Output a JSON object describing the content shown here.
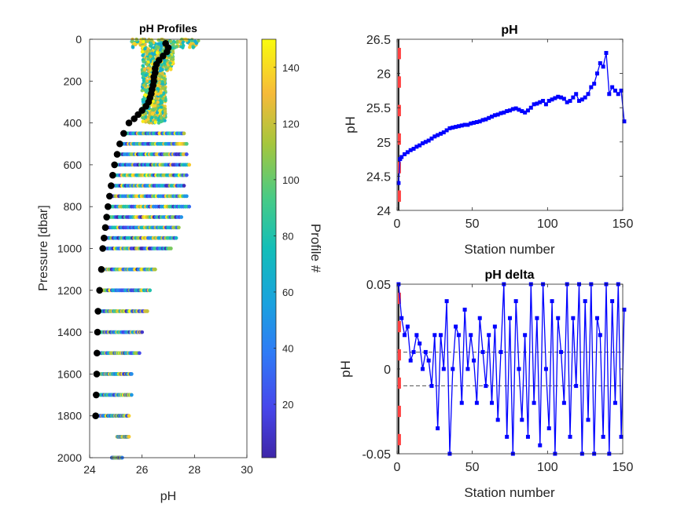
{
  "colors": {
    "axis": "#262626",
    "series": "#0000FF",
    "marker_red": "#FF4040",
    "reference_line": "#222222",
    "profile_line": "#000000"
  },
  "chart_data": [
    {
      "type": "scatter",
      "title": "pH Profiles",
      "xlabel": "pH",
      "ylabel": "Pressure [dbar]",
      "xlim": [
        24,
        30
      ],
      "ylim": [
        2000,
        0
      ],
      "y_reversed": true,
      "xticks": [
        "24",
        "26",
        "28",
        "30"
      ],
      "yticks": [
        "0",
        "200",
        "400",
        "600",
        "800",
        "1000",
        "1200",
        "1400",
        "1600",
        "1800",
        "2000"
      ],
      "colorbar": {
        "label": "Profile #",
        "range": [
          1,
          150
        ],
        "ticks": [
          "20",
          "40",
          "60",
          "80",
          "100",
          "120",
          "140"
        ],
        "colormap": "parula"
      },
      "reference_profile": {
        "pressure": [
          20,
          40,
          60,
          80,
          100,
          120,
          140,
          160,
          180,
          200,
          220,
          240,
          260,
          280,
          300,
          320,
          340,
          360,
          380,
          400,
          450,
          500,
          550,
          600,
          650,
          700,
          750,
          800,
          850,
          900,
          950,
          1000,
          1100,
          1200,
          1300,
          1400,
          1500,
          1600,
          1700,
          1800
        ],
        "ph": [
          26.9,
          27.0,
          26.95,
          26.8,
          26.65,
          26.55,
          26.5,
          26.5,
          26.45,
          26.45,
          26.42,
          26.38,
          26.35,
          26.3,
          26.25,
          26.15,
          26.0,
          25.85,
          25.7,
          25.5,
          25.3,
          25.15,
          25.05,
          24.95,
          24.88,
          24.82,
          24.76,
          24.7,
          24.65,
          24.6,
          24.55,
          24.5,
          24.45,
          24.38,
          24.32,
          24.3,
          24.28,
          24.27,
          24.25,
          24.23
        ]
      },
      "profile_depths": [
        450,
        500,
        550,
        600,
        650,
        700,
        750,
        800,
        850,
        900,
        950,
        1000,
        1100,
        1200,
        1300,
        1400,
        1500,
        1600,
        1700,
        1800,
        1900,
        2000
      ],
      "profile_ph_max": [
        27.6,
        27.7,
        27.7,
        27.8,
        27.7,
        27.6,
        27.7,
        27.8,
        27.5,
        27.4,
        27.3,
        27.1,
        26.5,
        26.3,
        26.2,
        26.0,
        25.9,
        25.6,
        25.6,
        25.5,
        25.5,
        25.3
      ]
    },
    {
      "type": "line",
      "title": "pH",
      "xlabel": "Station number",
      "ylabel": "pH",
      "xlim": [
        0,
        150
      ],
      "ylim": [
        24,
        26.5
      ],
      "xticks": [
        "0",
        "50",
        "100",
        "150"
      ],
      "yticks": [
        "24",
        "24.5",
        "25",
        "25.5",
        "26",
        "26.5"
      ],
      "x": [
        1,
        2,
        3,
        5,
        7,
        9,
        11,
        13,
        15,
        17,
        19,
        21,
        23,
        25,
        27,
        29,
        31,
        33,
        35,
        37,
        39,
        41,
        43,
        45,
        47,
        49,
        51,
        53,
        55,
        57,
        59,
        61,
        63,
        65,
        67,
        69,
        71,
        73,
        75,
        77,
        79,
        81,
        83,
        85,
        87,
        89,
        91,
        93,
        95,
        97,
        99,
        101,
        103,
        105,
        107,
        109,
        111,
        113,
        115,
        117,
        119,
        121,
        123,
        125,
        127,
        129,
        131,
        133,
        135,
        137,
        139,
        141,
        143,
        145,
        147,
        149,
        151
      ],
      "values": [
        24.4,
        24.75,
        24.78,
        24.82,
        24.85,
        24.88,
        24.9,
        24.93,
        24.95,
        24.98,
        25.0,
        25.02,
        25.05,
        25.08,
        25.1,
        25.12,
        25.14,
        25.17,
        25.2,
        25.21,
        25.22,
        25.23,
        25.24,
        25.25,
        25.25,
        25.27,
        25.28,
        25.29,
        25.3,
        25.32,
        25.33,
        25.35,
        25.37,
        25.39,
        25.4,
        25.42,
        25.43,
        25.45,
        25.46,
        25.48,
        25.49,
        25.47,
        25.45,
        25.43,
        25.46,
        25.5,
        25.55,
        25.56,
        25.58,
        25.6,
        25.55,
        25.6,
        25.62,
        25.64,
        25.66,
        25.65,
        25.63,
        25.58,
        25.6,
        25.65,
        25.7,
        25.6,
        25.62,
        25.65,
        25.7,
        25.8,
        25.85,
        26.0,
        26.15,
        26.1,
        26.3,
        25.7,
        25.8,
        25.75,
        25.7,
        25.75,
        25.3
      ],
      "red_markers_x": [
        1,
        1,
        1,
        1,
        1,
        1
      ]
    },
    {
      "type": "line",
      "title": "pH delta",
      "xlabel": "Station number",
      "ylabel": "pH",
      "xlim": [
        0,
        150
      ],
      "ylim": [
        -0.05,
        0.05
      ],
      "xticks": [
        "0",
        "50",
        "100",
        "150"
      ],
      "yticks": [
        "-0.05",
        "0",
        "0.05"
      ],
      "reference_lines": [
        0.01,
        -0.01
      ],
      "x": [
        1,
        3,
        5,
        7,
        9,
        11,
        13,
        15,
        17,
        19,
        21,
        23,
        25,
        27,
        29,
        31,
        33,
        35,
        37,
        39,
        41,
        43,
        45,
        47,
        49,
        51,
        53,
        55,
        57,
        59,
        61,
        63,
        65,
        67,
        69,
        71,
        73,
        75,
        77,
        79,
        81,
        83,
        85,
        87,
        89,
        91,
        93,
        95,
        97,
        99,
        101,
        103,
        105,
        107,
        109,
        111,
        113,
        115,
        117,
        119,
        121,
        123,
        125,
        127,
        129,
        131,
        133,
        135,
        137,
        139,
        141,
        143,
        145,
        147,
        149,
        151
      ],
      "values": [
        0.05,
        0.03,
        0.02,
        0.025,
        0.005,
        0.01,
        0.02,
        0.015,
        0.0,
        0.01,
        0.005,
        -0.01,
        0.02,
        -0.035,
        0.02,
        0.0,
        0.04,
        -0.05,
        0.0,
        0.025,
        0.02,
        -0.02,
        0.035,
        0.0,
        0.02,
        0.005,
        -0.02,
        0.03,
        0.01,
        -0.01,
        0.02,
        -0.02,
        0.025,
        -0.03,
        0.01,
        0.05,
        -0.04,
        0.03,
        -0.05,
        0.04,
        0.0,
        -0.03,
        0.02,
        -0.04,
        0.05,
        -0.02,
        0.03,
        -0.045,
        0.05,
        0.0,
        -0.035,
        0.04,
        -0.05,
        0.03,
        0.01,
        -0.02,
        0.05,
        -0.04,
        0.03,
        -0.01,
        0.05,
        -0.05,
        0.04,
        -0.03,
        0.05,
        -0.05,
        0.03,
        0.02,
        -0.04,
        0.05,
        -0.05,
        0.04,
        -0.02,
        0.05,
        -0.04,
        0.035
      ],
      "red_markers_x": [
        1,
        1,
        1,
        1,
        1,
        1
      ]
    }
  ]
}
